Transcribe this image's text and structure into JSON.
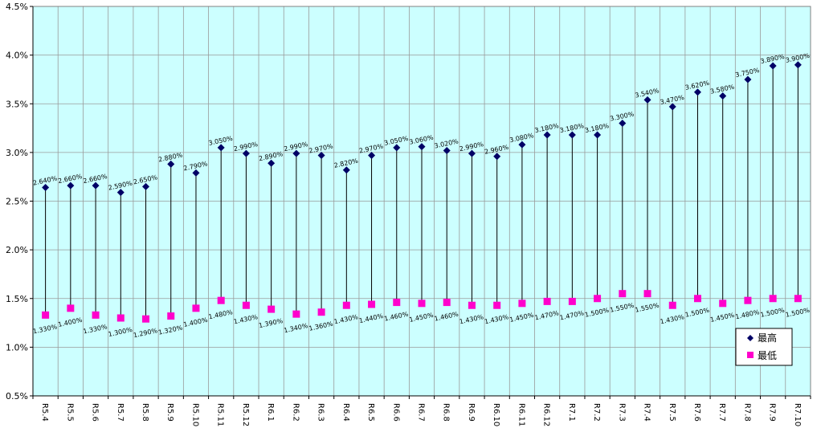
{
  "chart_data": {
    "type": "line",
    "categories": [
      "R5.4",
      "R5.5",
      "R5.6",
      "R5.7",
      "R5.8",
      "R5.9",
      "R5.10",
      "R5.11",
      "R5.12",
      "R6.1",
      "R6.2",
      "R6.3",
      "R6.4",
      "R6.5",
      "R6.6",
      "R6.7",
      "R6.8",
      "R6.9",
      "R6.10",
      "R6.11",
      "R6.12",
      "R7.1",
      "R7.2",
      "R7.3",
      "R7.4",
      "R7.5",
      "R7.6",
      "R7.7",
      "R7.8",
      "R7.9",
      "R7.10"
    ],
    "series": [
      {
        "name": "最高",
        "color": "#000066",
        "marker": "diamond",
        "values": [
          2.64,
          2.66,
          2.66,
          2.59,
          2.65,
          2.88,
          2.79,
          3.05,
          2.99,
          2.89,
          2.99,
          2.97,
          2.82,
          2.97,
          3.05,
          3.06,
          3.02,
          2.99,
          2.96,
          3.08,
          3.18,
          3.18,
          3.18,
          3.3,
          3.54,
          3.47,
          3.62,
          3.58,
          3.75,
          3.89,
          3.9
        ],
        "labels": [
          "2.640%",
          "2.660%",
          "2.660%",
          "2.590%",
          "2.650%",
          "2.880%",
          "2.790%",
          "3.050%",
          "2.990%",
          "2.890%",
          "2.990%",
          "2.970%",
          "2.820%",
          "2.970%",
          "3.050%",
          "3.060%",
          "3.020%",
          "2.990%",
          "2.960%",
          "3.080%",
          "3.180%",
          "3.180%",
          "3.180%",
          "3.300%",
          "3.540%",
          "3.470%",
          "3.620%",
          "3.580%",
          "3.750%",
          "3.890%",
          "3.900%"
        ]
      },
      {
        "name": "最低",
        "color": "#ff00cc",
        "marker": "square",
        "values": [
          1.33,
          1.4,
          1.33,
          1.3,
          1.29,
          1.32,
          1.4,
          1.48,
          1.43,
          1.39,
          1.34,
          1.36,
          1.43,
          1.44,
          1.46,
          1.45,
          1.46,
          1.43,
          1.43,
          1.45,
          1.47,
          1.47,
          1.5,
          1.55,
          1.55,
          1.43,
          1.5,
          1.45,
          1.48,
          1.5,
          1.5
        ],
        "labels": [
          "1.330%",
          "1.400%",
          "1.330%",
          "1.300%",
          "1.290%",
          "1.320%",
          "1.400%",
          "1.480%",
          "1.430%",
          "1.390%",
          "1.340%",
          "1.360%",
          "1.430%",
          "1.440%",
          "1.460%",
          "1.450%",
          "1.460%",
          "1.430%",
          "1.430%",
          "1.450%",
          "1.470%",
          "1.470%",
          "1.500%",
          "1.550%",
          "1.550%",
          "1.430%",
          "1.500%",
          "1.450%",
          "1.480%",
          "1.500%",
          "1.500%"
        ]
      }
    ],
    "ylim": [
      0.5,
      4.5
    ],
    "yticks": [
      "0.5%",
      "1.0%",
      "1.5%",
      "2.0%",
      "2.5%",
      "3.0%",
      "3.5%",
      "4.0%",
      "4.5%"
    ],
    "ytick_values": [
      0.5,
      1.0,
      1.5,
      2.0,
      2.5,
      3.0,
      3.5,
      4.0,
      4.5
    ],
    "grid": true,
    "high_low_lines": true,
    "plot_background": "#ccffff",
    "legend_position": "bottom-right"
  }
}
